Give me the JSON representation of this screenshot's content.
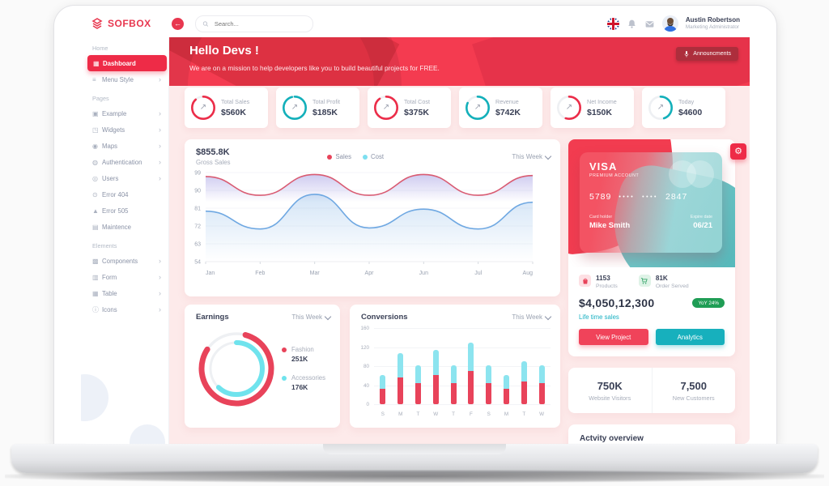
{
  "window": {
    "logo_text": "SOFBOX"
  },
  "header": {
    "search_placeholder": "Search...",
    "user_name": "Austin Robertson",
    "user_role": "Marketing Administrator"
  },
  "sidebar": {
    "sections": [
      {
        "label": "Home",
        "items": [
          {
            "label": "Dashboard",
            "icon": "dashboard-grid-icon",
            "glyph": "▦",
            "active": true,
            "chevron": false
          },
          {
            "label": "Menu Style",
            "icon": "menu-style-icon",
            "glyph": "≡",
            "chevron": true
          }
        ]
      },
      {
        "label": "Pages",
        "items": [
          {
            "label": "Example",
            "icon": "example-icon",
            "glyph": "▣",
            "chevron": true
          },
          {
            "label": "Widgets",
            "icon": "widgets-icon",
            "glyph": "◳",
            "chevron": true
          },
          {
            "label": "Maps",
            "icon": "map-pin-icon",
            "glyph": "◉",
            "chevron": true
          },
          {
            "label": "Authentication",
            "icon": "shield-icon",
            "glyph": "◍",
            "chevron": true
          },
          {
            "label": "Users",
            "icon": "users-icon",
            "glyph": "◎",
            "chevron": true
          },
          {
            "label": "Error 404",
            "icon": "error-404-icon",
            "glyph": "⊙",
            "chevron": false
          },
          {
            "label": "Error 505",
            "icon": "error-505-icon",
            "glyph": "▲",
            "chevron": false
          },
          {
            "label": "Maintence",
            "icon": "maintenance-icon",
            "glyph": "▤",
            "chevron": false
          }
        ]
      },
      {
        "label": "Elements",
        "items": [
          {
            "label": "Components",
            "icon": "components-icon",
            "glyph": "▩",
            "chevron": true
          },
          {
            "label": "Form",
            "icon": "form-icon",
            "glyph": "▥",
            "chevron": true
          },
          {
            "label": "Table",
            "icon": "table-icon",
            "glyph": "▦",
            "chevron": true
          },
          {
            "label": "Icons",
            "icon": "icons-icon",
            "glyph": "ⓘ",
            "chevron": true
          }
        ]
      }
    ]
  },
  "hero": {
    "title": "Hello Devs !",
    "subtitle": "We are on a mission to help developers like you to build beautiful projects for FREE.",
    "announcements_label": "Announcments"
  },
  "stat_cards": [
    {
      "label": "Total Sales",
      "value": "$560K",
      "ring_color": "#ec2d49",
      "percent": 88
    },
    {
      "label": "Total Profit",
      "value": "$185K",
      "ring_color": "#13b0ba",
      "percent": 96
    },
    {
      "label": "Total Cost",
      "value": "$375K",
      "ring_color": "#ec2d49",
      "percent": 90
    },
    {
      "label": "Revenue",
      "value": "$742K",
      "ring_color": "#13b0ba",
      "percent": 82
    },
    {
      "label": "Net Income",
      "value": "$150K",
      "ring_color": "#ec2d49",
      "percent": 55
    },
    {
      "label": "Today",
      "value": "$4600",
      "ring_color": "#13b0ba",
      "percent": 45
    }
  ],
  "visa_card": {
    "brand": "VISA",
    "account_type": "PREMIUM ACCOUNT",
    "number_prefix": "5789",
    "number_suffix": "2847",
    "card_holder_label": "Card holder",
    "card_holder": "Mike Smith",
    "expire_label": "Expire date",
    "expire": "06/21"
  },
  "sales_summary": {
    "products_count": "1153",
    "products_label": "Products",
    "orders_count": "81K",
    "orders_label": "Order Served",
    "lifetime_value": "$4,050,12,300",
    "yoy_badge": "YoY 24%",
    "lifetime_label": "Life time sales",
    "view_project_label": "View Project",
    "analytics_label": "Analytics"
  },
  "visitors_card": {
    "visitors_value": "750K",
    "visitors_label": "Website Visitors",
    "customers_value": "7,500",
    "customers_label": "New Customers"
  },
  "activity_card": {
    "title": "Actvity overview"
  },
  "chart_data": [
    {
      "id": "gross_sales",
      "type": "line",
      "title": "Gross Sales",
      "total_label": "$855.8K",
      "period": "This Week",
      "x": [
        "Jan",
        "Feb",
        "Mar",
        "Apr",
        "Jun",
        "Jul",
        "Aug"
      ],
      "ylim": [
        54,
        99
      ],
      "yticks": [
        99,
        90,
        81,
        72,
        63,
        54
      ],
      "grid": true,
      "legend_position": "top",
      "series": [
        {
          "name": "Sales",
          "color": "#d95b72",
          "values": [
            97,
            87.5,
            98,
            87.5,
            98,
            87.5,
            97.5
          ]
        },
        {
          "name": "Cost",
          "color": "#6fa8e2",
          "values": [
            79.5,
            70.5,
            88,
            71,
            80.5,
            70.5,
            84
          ]
        }
      ],
      "legend": [
        {
          "label": "Sales",
          "color": "#e8435a"
        },
        {
          "label": "Cost",
          "color": "#7ddff0"
        }
      ]
    },
    {
      "id": "earnings",
      "type": "donut",
      "title": "Earnings",
      "period": "This Week",
      "segments": [
        {
          "label": "Fashion",
          "value": "251K",
          "color": "#e8435a",
          "percent": 80,
          "rotate": -75
        },
        {
          "label": "Accessories",
          "value": "176K",
          "color": "#6fe3ed",
          "percent": 62,
          "rotate": -90
        }
      ]
    },
    {
      "id": "conversions",
      "type": "stacked-bar",
      "title": "Conversions",
      "period": "This Week",
      "x": [
        "S",
        "M",
        "T",
        "W",
        "T",
        "F",
        "S",
        "M",
        "T",
        "W"
      ],
      "ylim": [
        0,
        160
      ],
      "yticks": [
        160,
        120,
        80,
        40,
        0
      ],
      "series": [
        {
          "name": "Sales",
          "color": "#e8435a",
          "values": [
            33,
            57,
            45,
            61,
            45,
            70,
            45,
            33,
            48,
            45
          ]
        },
        {
          "name": "Cost",
          "color": "#8ce4ef",
          "values": [
            29,
            51,
            36,
            54,
            36,
            60,
            36,
            29,
            42,
            36
          ]
        }
      ]
    }
  ]
}
